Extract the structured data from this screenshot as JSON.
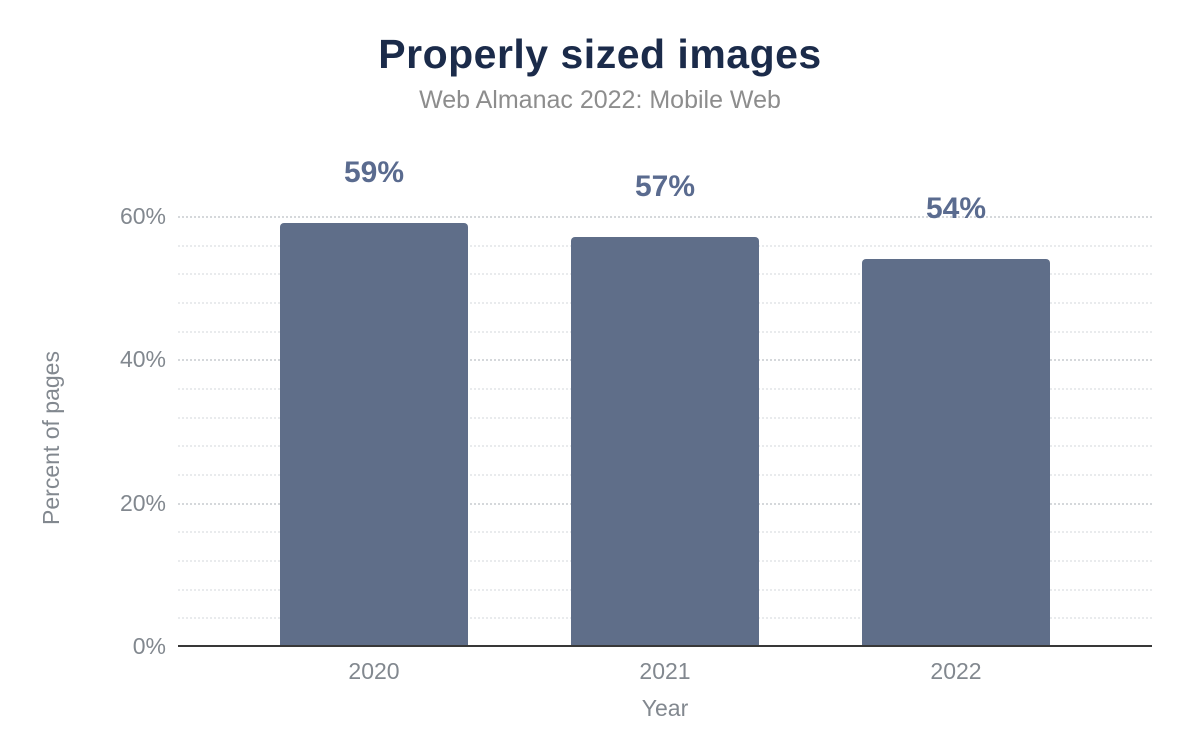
{
  "chart_data": {
    "type": "bar",
    "title": "Properly sized images",
    "subtitle": "Web Almanac 2022: Mobile Web",
    "xlabel": "Year",
    "ylabel": "Percent of pages",
    "categories": [
      "2020",
      "2021",
      "2022"
    ],
    "values": [
      59,
      57,
      54
    ],
    "data_labels": [
      "59%",
      "57%",
      "54%"
    ],
    "y_ticks": {
      "values": [
        0,
        20,
        40,
        60
      ],
      "labels": [
        "0%",
        "20%",
        "40%",
        "60%"
      ]
    },
    "y_minor_tick_step": 4,
    "ylim": [
      0,
      64
    ],
    "grid": "horizontal dotted, minor gridlines every 4%",
    "legend": "none",
    "orientation": "vertical"
  },
  "colors": {
    "title": "#1b2b4a",
    "subtitle": "#8d8d8d",
    "bar": "#5f6e89",
    "bar_label": "#5a6b8f",
    "axis_text": "#82888f",
    "axis_line": "#383838",
    "grid_major": "#d5d8db",
    "grid_minor": "#e9ebed",
    "background": "#ffffff"
  }
}
